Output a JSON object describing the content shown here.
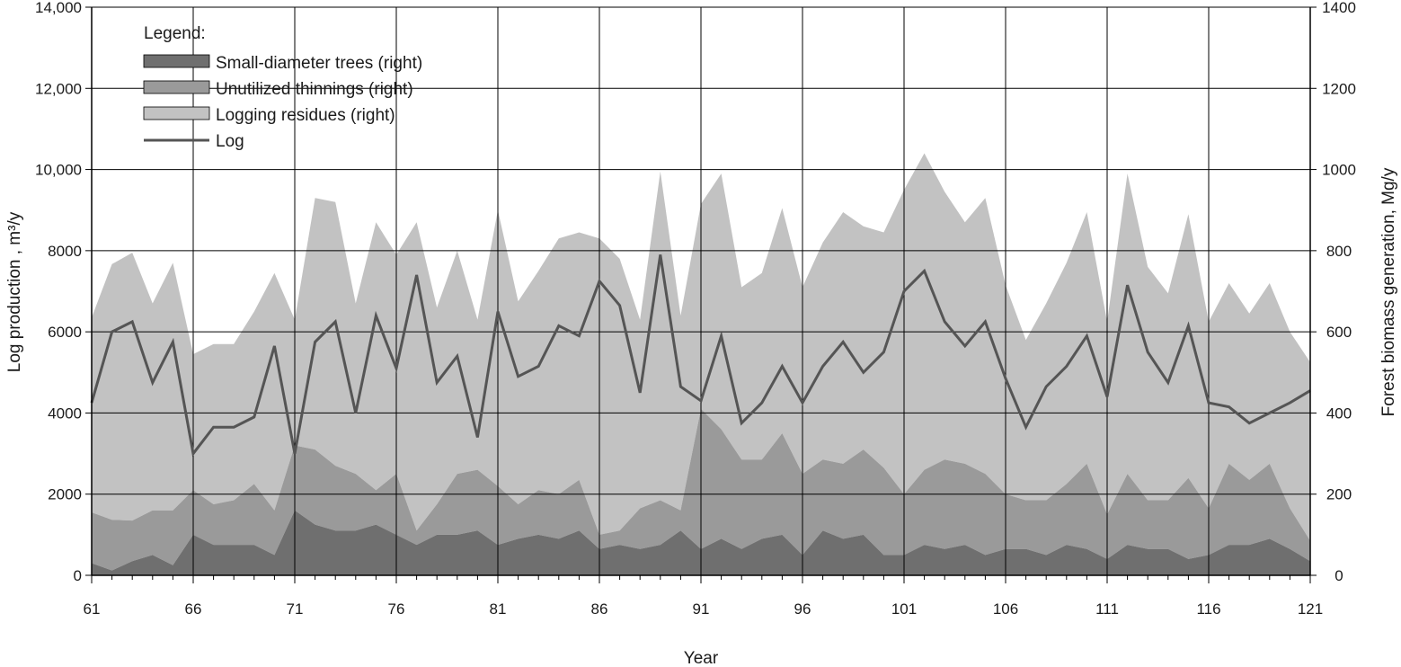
{
  "colors": {
    "small_diameter": "#6f6f6f",
    "unutilized": "#9a9a9a",
    "logging_residues": "#c2c2c2",
    "log_line": "#555555",
    "grid": "#000000",
    "axis": "#000000"
  },
  "chart_data": {
    "type": "area",
    "title": "",
    "xlabel": "Year",
    "ylabel_left": "Log production , m³/y",
    "ylabel_right": "Forest biomass generation, Mg/y",
    "x_ticks": [
      "61",
      "66",
      "71",
      "76",
      "81",
      "86",
      "91",
      "96",
      "101",
      "106",
      "111",
      "116",
      "121"
    ],
    "y_left_ticks": [
      "0",
      "2000",
      "4000",
      "6000",
      "8000",
      "10,000",
      "12,000",
      "14,000"
    ],
    "y_right_ticks": [
      "0",
      "200",
      "400",
      "600",
      "800",
      "1000",
      "1200",
      "1400"
    ],
    "xlim": [
      61,
      121
    ],
    "ylim_left": [
      0,
      14000
    ],
    "ylim_right": [
      0,
      1400
    ],
    "grid": true,
    "legend": {
      "title": "Legend:",
      "placement": "top-left",
      "items": [
        {
          "key": "small",
          "label": "Small-diameter trees (right)",
          "kind": "area"
        },
        {
          "key": "unutilized",
          "label": "Unutilized thinnings (right)",
          "kind": "area"
        },
        {
          "key": "residues",
          "label": "Logging residues (right)",
          "kind": "area"
        },
        {
          "key": "log",
          "label": "Log",
          "kind": "line"
        }
      ]
    },
    "x": [
      61,
      62,
      63,
      64,
      65,
      66,
      67,
      68,
      69,
      70,
      71,
      72,
      73,
      74,
      75,
      76,
      77,
      78,
      79,
      80,
      81,
      82,
      83,
      84,
      85,
      86,
      87,
      88,
      89,
      90,
      91,
      92,
      93,
      94,
      95,
      96,
      97,
      98,
      99,
      100,
      101,
      102,
      103,
      104,
      105,
      106,
      107,
      108,
      109,
      110,
      111,
      112,
      113,
      114,
      115,
      116,
      117,
      118,
      119,
      120,
      121
    ],
    "series": [
      {
        "name": "Small-diameter trees (right)",
        "key": "small",
        "axis": "right",
        "values": [
          30,
          12,
          35,
          50,
          25,
          100,
          75,
          75,
          75,
          50,
          160,
          125,
          110,
          110,
          125,
          100,
          75,
          100,
          100,
          110,
          75,
          90,
          100,
          90,
          110,
          65,
          75,
          65,
          75,
          110,
          65,
          90,
          65,
          90,
          100,
          50,
          110,
          90,
          100,
          50,
          50,
          75,
          65,
          75,
          50,
          65,
          65,
          50,
          75,
          65,
          40,
          75,
          65,
          65,
          40,
          50,
          75,
          75,
          90,
          65,
          35
        ]
      },
      {
        "name": "Unutilized thinnings (right)",
        "key": "unutilized",
        "axis": "right",
        "values": [
          125,
          125,
          100,
          110,
          135,
          110,
          100,
          110,
          150,
          110,
          160,
          185,
          160,
          140,
          85,
          150,
          35,
          75,
          150,
          150,
          145,
          85,
          110,
          110,
          125,
          35,
          35,
          100,
          110,
          50,
          345,
          270,
          220,
          195,
          250,
          200,
          175,
          185,
          210,
          215,
          150,
          185,
          220,
          200,
          200,
          135,
          120,
          135,
          150,
          210,
          110,
          175,
          120,
          120,
          200,
          115,
          200,
          160,
          185,
          100,
          50
        ]
      },
      {
        "name": "Logging residues (right)",
        "key": "residues",
        "axis": "right",
        "values": [
          480,
          630,
          660,
          510,
          610,
          335,
          395,
          385,
          425,
          585,
          310,
          620,
          650,
          420,
          660,
          540,
          760,
          485,
          550,
          370,
          680,
          500,
          540,
          630,
          610,
          730,
          670,
          465,
          810,
          480,
          505,
          630,
          425,
          460,
          555,
          460,
          535,
          620,
          550,
          580,
          750,
          780,
          660,
          595,
          680,
          515,
          395,
          485,
          545,
          620,
          475,
          740,
          575,
          510,
          650,
          460,
          445,
          410,
          445,
          435,
          440
        ]
      },
      {
        "name": "Log",
        "key": "log",
        "axis": "left",
        "type": "line",
        "values": [
          4250,
          6000,
          6250,
          4750,
          5750,
          3000,
          3650,
          3650,
          3900,
          5650,
          3000,
          5750,
          6250,
          4000,
          6400,
          5100,
          7400,
          4750,
          5400,
          3400,
          6500,
          4900,
          5150,
          6150,
          5900,
          7250,
          6650,
          4500,
          7900,
          4650,
          4300,
          5900,
          3750,
          4250,
          5150,
          4250,
          5150,
          5750,
          5000,
          5500,
          7000,
          7500,
          6250,
          5650,
          6250,
          4850,
          3650,
          4650,
          5150,
          5900,
          4400,
          7150,
          5500,
          4750,
          6150,
          4250,
          4150,
          3750,
          4000,
          4250,
          4550
        ]
      }
    ]
  }
}
